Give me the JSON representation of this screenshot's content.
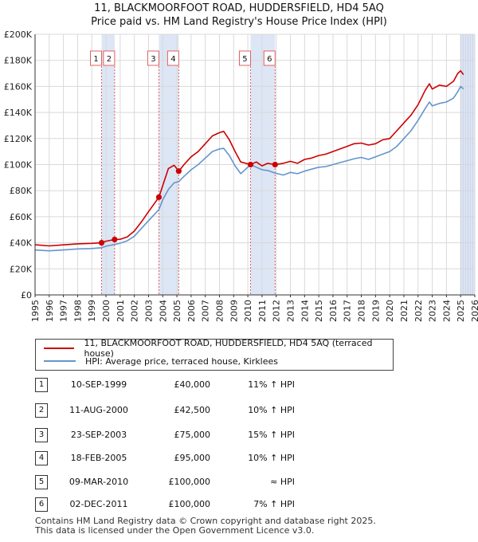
{
  "header": {
    "title_line1": "11, BLACKMOORFOOT ROAD, HUDDERSFIELD, HD4 5AQ",
    "title_line2": "Price paid vs. HM Land Registry's House Price Index (HPI)"
  },
  "colors": {
    "price_line": "#cc0000",
    "hpi_line": "#6495cd",
    "shade": "#dde6f5",
    "marker_line": "#e06060",
    "grid": "#d9d9d9"
  },
  "chart_data": {
    "type": "line",
    "title": "Price paid vs. HM Land Registry's House Price Index (HPI)",
    "xlim": [
      1995,
      2026
    ],
    "ylim": [
      0,
      200000
    ],
    "y_ticks": [
      0,
      20000,
      40000,
      60000,
      80000,
      100000,
      120000,
      140000,
      160000,
      180000,
      200000
    ],
    "y_tick_labels": [
      "£0",
      "£20K",
      "£40K",
      "£60K",
      "£80K",
      "£100K",
      "£120K",
      "£140K",
      "£160K",
      "£180K",
      "£200K"
    ],
    "x_ticks": [
      1995,
      1996,
      1997,
      1998,
      1999,
      2000,
      2001,
      2002,
      2003,
      2004,
      2005,
      2006,
      2007,
      2008,
      2009,
      2010,
      2011,
      2012,
      2013,
      2014,
      2015,
      2016,
      2017,
      2018,
      2019,
      2020,
      2021,
      2022,
      2023,
      2024,
      2025,
      2026
    ],
    "x_tick_labels": [
      "1995",
      "1996",
      "1997",
      "1998",
      "1999",
      "2000",
      "2001",
      "2002",
      "2003",
      "2004",
      "2005",
      "2006",
      "2007",
      "2008",
      "2009",
      "2010",
      "2011",
      "2012",
      "2013",
      "2014",
      "2015",
      "2016",
      "2017",
      "2018",
      "2019",
      "2020",
      "2021",
      "2022",
      "2023",
      "2024",
      "2025",
      "2026"
    ],
    "grid": true,
    "shaded_ranges": [
      [
        1999.69,
        2000.61
      ],
      [
        2003.73,
        2005.13
      ],
      [
        2010.19,
        2011.92
      ],
      [
        2025.0,
        2026.0
      ]
    ],
    "series": [
      {
        "name": "11, BLACKMOORFOOT ROAD, HUDDERSFIELD, HD4 5AQ (terraced house)",
        "color": "#cc0000",
        "points": [
          [
            1995.0,
            38500
          ],
          [
            1996.0,
            37600
          ],
          [
            1997.0,
            38400
          ],
          [
            1998.0,
            39200
          ],
          [
            1999.0,
            39600
          ],
          [
            1999.69,
            40000
          ],
          [
            2000.0,
            41200
          ],
          [
            2000.61,
            42500
          ],
          [
            2001.0,
            42700
          ],
          [
            2001.5,
            44500
          ],
          [
            2002.0,
            49000
          ],
          [
            2002.5,
            56000
          ],
          [
            2003.0,
            64000
          ],
          [
            2003.73,
            75000
          ],
          [
            2004.0,
            84000
          ],
          [
            2004.4,
            97000
          ],
          [
            2004.8,
            99500
          ],
          [
            2005.13,
            95000
          ],
          [
            2005.5,
            100000
          ],
          [
            2006.0,
            106000
          ],
          [
            2006.5,
            110000
          ],
          [
            2007.0,
            116000
          ],
          [
            2007.5,
            122000
          ],
          [
            2008.0,
            124500
          ],
          [
            2008.3,
            125500
          ],
          [
            2008.7,
            119000
          ],
          [
            2009.1,
            110000
          ],
          [
            2009.5,
            102000
          ],
          [
            2010.19,
            100000
          ],
          [
            2010.6,
            102000
          ],
          [
            2011.0,
            99000
          ],
          [
            2011.4,
            101000
          ],
          [
            2011.92,
            100000
          ],
          [
            2012.5,
            101000
          ],
          [
            2013.0,
            102500
          ],
          [
            2013.5,
            101000
          ],
          [
            2014.0,
            104000
          ],
          [
            2014.5,
            105000
          ],
          [
            2015.0,
            107000
          ],
          [
            2015.5,
            108000
          ],
          [
            2016.0,
            110000
          ],
          [
            2016.5,
            112000
          ],
          [
            2017.0,
            114000
          ],
          [
            2017.5,
            116000
          ],
          [
            2018.0,
            116500
          ],
          [
            2018.5,
            115000
          ],
          [
            2019.0,
            116000
          ],
          [
            2019.5,
            119000
          ],
          [
            2020.0,
            120000
          ],
          [
            2020.5,
            126000
          ],
          [
            2021.0,
            132000
          ],
          [
            2021.5,
            138000
          ],
          [
            2022.0,
            146000
          ],
          [
            2022.5,
            157000
          ],
          [
            2022.8,
            162000
          ],
          [
            2023.0,
            158000
          ],
          [
            2023.5,
            161000
          ],
          [
            2024.0,
            160000
          ],
          [
            2024.5,
            164000
          ],
          [
            2024.8,
            170000
          ],
          [
            2025.0,
            172000
          ],
          [
            2025.2,
            169000
          ]
        ]
      },
      {
        "name": "HPI: Average price, terraced house, Kirklees",
        "color": "#6495cd",
        "points": [
          [
            1995.0,
            34500
          ],
          [
            1996.0,
            33800
          ],
          [
            1997.0,
            34500
          ],
          [
            1998.0,
            35300
          ],
          [
            1999.0,
            35600
          ],
          [
            1999.69,
            36200
          ],
          [
            2000.0,
            37400
          ],
          [
            2000.61,
            38700
          ],
          [
            2001.0,
            39700
          ],
          [
            2001.5,
            41500
          ],
          [
            2002.0,
            45000
          ],
          [
            2002.5,
            51000
          ],
          [
            2003.0,
            57000
          ],
          [
            2003.73,
            65500
          ],
          [
            2004.0,
            73000
          ],
          [
            2004.4,
            81000
          ],
          [
            2004.8,
            86000
          ],
          [
            2005.13,
            87000
          ],
          [
            2005.5,
            91000
          ],
          [
            2006.0,
            96000
          ],
          [
            2006.5,
            100000
          ],
          [
            2007.0,
            105000
          ],
          [
            2007.5,
            110000
          ],
          [
            2008.0,
            112000
          ],
          [
            2008.3,
            112500
          ],
          [
            2008.7,
            107000
          ],
          [
            2009.1,
            99000
          ],
          [
            2009.5,
            93000
          ],
          [
            2010.19,
            100000
          ],
          [
            2010.6,
            98000
          ],
          [
            2011.0,
            96000
          ],
          [
            2011.4,
            95500
          ],
          [
            2011.92,
            93500
          ],
          [
            2012.5,
            92000
          ],
          [
            2013.0,
            94000
          ],
          [
            2013.5,
            93000
          ],
          [
            2014.0,
            95000
          ],
          [
            2014.5,
            96500
          ],
          [
            2015.0,
            98000
          ],
          [
            2015.5,
            98500
          ],
          [
            2016.0,
            100000
          ],
          [
            2016.5,
            101500
          ],
          [
            2017.0,
            103000
          ],
          [
            2017.5,
            104500
          ],
          [
            2018.0,
            105500
          ],
          [
            2018.5,
            104000
          ],
          [
            2019.0,
            106000
          ],
          [
            2019.5,
            108000
          ],
          [
            2020.0,
            110000
          ],
          [
            2020.5,
            114000
          ],
          [
            2021.0,
            120000
          ],
          [
            2021.5,
            126000
          ],
          [
            2022.0,
            134000
          ],
          [
            2022.5,
            143000
          ],
          [
            2022.8,
            148000
          ],
          [
            2023.0,
            145000
          ],
          [
            2023.5,
            147000
          ],
          [
            2024.0,
            148000
          ],
          [
            2024.5,
            151000
          ],
          [
            2024.8,
            156000
          ],
          [
            2025.0,
            160000
          ],
          [
            2025.2,
            158000
          ]
        ]
      }
    ],
    "sales": [
      {
        "label": "1",
        "x": 1999.69,
        "price": 40000
      },
      {
        "label": "2",
        "x": 2000.61,
        "price": 42500
      },
      {
        "label": "3",
        "x": 2003.73,
        "price": 75000
      },
      {
        "label": "4",
        "x": 2005.13,
        "price": 95000
      },
      {
        "label": "5",
        "x": 2010.19,
        "price": 100000
      },
      {
        "label": "6",
        "x": 2011.92,
        "price": 100000
      }
    ]
  },
  "legend": {
    "items": [
      {
        "label": "11, BLACKMOORFOOT ROAD, HUDDERSFIELD, HD4 5AQ (terraced house)",
        "color": "#cc0000"
      },
      {
        "label": "HPI: Average price, terraced house, Kirklees",
        "color": "#6495cd"
      }
    ]
  },
  "transactions": [
    {
      "num": "1",
      "date": "10-SEP-1999",
      "price": "£40,000",
      "hpi": "11% ↑ HPI"
    },
    {
      "num": "2",
      "date": "11-AUG-2000",
      "price": "£42,500",
      "hpi": "10% ↑ HPI"
    },
    {
      "num": "3",
      "date": "23-SEP-2003",
      "price": "£75,000",
      "hpi": "15% ↑ HPI"
    },
    {
      "num": "4",
      "date": "18-FEB-2005",
      "price": "£95,000",
      "hpi": "10% ↑ HPI"
    },
    {
      "num": "5",
      "date": "09-MAR-2010",
      "price": "£100,000",
      "hpi": "≈ HPI"
    },
    {
      "num": "6",
      "date": "02-DEC-2011",
      "price": "£100,000",
      "hpi": "7% ↑ HPI"
    }
  ],
  "footer": {
    "line1": "Contains HM Land Registry data © Crown copyright and database right 2025.",
    "line2": "This data is licensed under the Open Government Licence v3.0."
  }
}
